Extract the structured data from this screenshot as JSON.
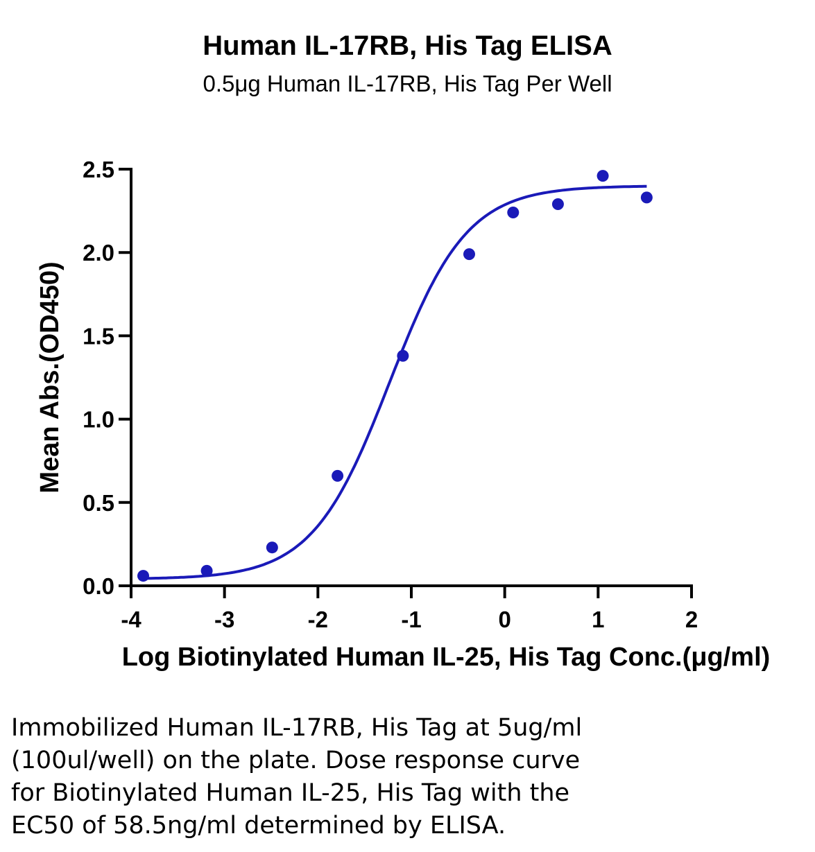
{
  "chart_data": {
    "type": "scatter",
    "title": "Human IL-17RB, His Tag ELISA",
    "subtitle": "0.5μg Human IL-17RB, His Tag Per Well",
    "xlabel": "Log Biotinylated Human IL-25, His Tag Conc.(μg/ml)",
    "ylabel": "Mean Abs.(OD450)",
    "xlim": [
      -4,
      2
    ],
    "ylim": [
      0,
      2.5
    ],
    "x_ticks": [
      "-4",
      "-3",
      "-2",
      "-1",
      "0",
      "1",
      "2"
    ],
    "y_ticks": [
      "0.0",
      "0.5",
      "1.0",
      "1.5",
      "2.0",
      "2.5"
    ],
    "color": "#1a1ab8",
    "points": [
      {
        "x": -3.87,
        "y": 0.06
      },
      {
        "x": -3.19,
        "y": 0.09
      },
      {
        "x": -2.49,
        "y": 0.23
      },
      {
        "x": -1.79,
        "y": 0.66
      },
      {
        "x": -1.09,
        "y": 1.38
      },
      {
        "x": -0.38,
        "y": 1.99
      },
      {
        "x": 0.09,
        "y": 2.24
      },
      {
        "x": 0.57,
        "y": 2.29
      },
      {
        "x": 1.05,
        "y": 2.46
      },
      {
        "x": 1.52,
        "y": 2.33
      }
    ],
    "fit_curve": {
      "bottom": 0.04,
      "top": 2.4,
      "log_ec50": -1.233,
      "hill_slope": 1.05,
      "x_start": -3.87,
      "x_end": 1.52
    },
    "grid": false,
    "legend": "none"
  },
  "caption_lines": [
    "Immobilized Human IL-17RB, His Tag at 5ug/ml",
    "(100ul/well) on the plate. Dose response curve",
    "for Biotinylated Human IL-25, His Tag with the",
    "EC50 of 58.5ng/ml determined by ELISA."
  ]
}
